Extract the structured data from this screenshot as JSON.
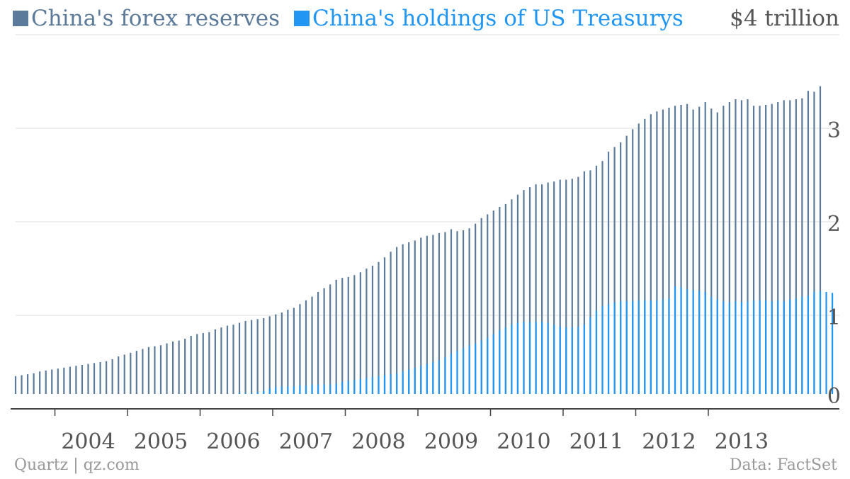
{
  "colors": {
    "forex": "#5c7a99",
    "treasury": "#2196f3",
    "grid": "#dedede",
    "axis": "#444444",
    "text": "#555555"
  },
  "legend": [
    {
      "name": "China's forex reserves",
      "color": "#5c7a99"
    },
    {
      "name": "China's holdings of US Treasurys",
      "color": "#2196f3"
    }
  ],
  "footer": {
    "source_left": "Quartz | qz.com",
    "source_right": "Data: FactSet"
  },
  "chart_data": {
    "type": "bar",
    "unit_label": "$4 trillion",
    "ylim": [
      0,
      4
    ],
    "yticks": [
      0,
      1,
      2,
      3
    ],
    "grid": true,
    "legend_position": "top-left",
    "x_tick_labels": [
      "2004",
      "2005",
      "2006",
      "2007",
      "2008",
      "2009",
      "2010",
      "2011",
      "2012",
      "2013"
    ],
    "start": "2003-06",
    "end": "2013-06",
    "series": [
      {
        "name": "China's forex reserves",
        "key": "forex",
        "values": [
          0.35,
          0.36,
          0.37,
          0.38,
          0.4,
          0.41,
          0.42,
          0.43,
          0.44,
          0.45,
          0.46,
          0.47,
          0.48,
          0.49,
          0.5,
          0.51,
          0.53,
          0.56,
          0.58,
          0.6,
          0.62,
          0.64,
          0.66,
          0.67,
          0.68,
          0.7,
          0.72,
          0.73,
          0.75,
          0.78,
          0.8,
          0.81,
          0.82,
          0.85,
          0.87,
          0.89,
          0.9,
          0.92,
          0.94,
          0.95,
          0.96,
          0.97,
          0.99,
          1.01,
          1.03,
          1.06,
          1.08,
          1.12,
          1.16,
          1.2,
          1.25,
          1.29,
          1.33,
          1.38,
          1.4,
          1.41,
          1.43,
          1.46,
          1.5,
          1.53,
          1.57,
          1.62,
          1.68,
          1.73,
          1.76,
          1.78,
          1.8,
          1.83,
          1.85,
          1.86,
          1.88,
          1.89,
          1.92,
          1.9,
          1.91,
          1.93,
          1.98,
          2.04,
          2.08,
          2.12,
          2.16,
          2.19,
          2.24,
          2.29,
          2.34,
          2.37,
          2.4,
          2.4,
          2.42,
          2.43,
          2.45,
          2.45,
          2.46,
          2.48,
          2.54,
          2.55,
          2.6,
          2.65,
          2.75,
          2.8,
          2.85,
          2.92,
          2.99,
          3.05,
          3.1,
          3.15,
          3.18,
          3.2,
          3.22,
          3.24,
          3.25,
          3.26,
          3.2,
          3.23,
          3.28,
          3.21,
          3.17,
          3.24,
          3.28,
          3.31,
          3.3,
          3.31,
          3.24,
          3.24,
          3.25,
          3.26,
          3.28,
          3.3,
          3.3,
          3.31,
          3.32,
          3.4,
          3.39,
          3.45
        ]
      },
      {
        "name": "China's holdings of US Treasurys",
        "key": "treasury",
        "values": [
          0.0,
          0.0,
          0.01,
          0.01,
          0.01,
          0.01,
          0.01,
          0.02,
          0.02,
          0.03,
          0.03,
          0.03,
          0.04,
          0.04,
          0.05,
          0.05,
          0.05,
          0.06,
          0.06,
          0.06,
          0.06,
          0.07,
          0.07,
          0.08,
          0.08,
          0.09,
          0.1,
          0.13,
          0.14,
          0.15,
          0.15,
          0.15,
          0.15,
          0.16,
          0.16,
          0.16,
          0.16,
          0.17,
          0.17,
          0.17,
          0.18,
          0.19,
          0.22,
          0.23,
          0.24,
          0.24,
          0.24,
          0.25,
          0.25,
          0.26,
          0.26,
          0.26,
          0.26,
          0.27,
          0.29,
          0.3,
          0.31,
          0.32,
          0.33,
          0.34,
          0.35,
          0.36,
          0.37,
          0.38,
          0.4,
          0.42,
          0.44,
          0.46,
          0.48,
          0.5,
          0.52,
          0.55,
          0.59,
          0.62,
          0.65,
          0.68,
          0.7,
          0.73,
          0.76,
          0.8,
          0.84,
          0.87,
          0.9,
          0.92,
          0.93,
          0.93,
          0.93,
          0.93,
          0.92,
          0.9,
          0.88,
          0.87,
          0.87,
          0.88,
          0.9,
          0.98,
          1.05,
          1.1,
          1.12,
          1.14,
          1.15,
          1.15,
          1.15,
          1.16,
          1.16,
          1.16,
          1.16,
          1.17,
          1.18,
          1.31,
          1.3,
          1.28,
          1.27,
          1.26,
          1.25,
          1.2,
          1.17,
          1.15,
          1.14,
          1.15,
          1.14,
          1.15,
          1.16,
          1.16,
          1.16,
          1.15,
          1.16,
          1.15,
          1.17,
          1.18,
          1.2,
          1.21,
          1.25,
          1.26,
          1.25,
          1.24
        ]
      }
    ]
  }
}
